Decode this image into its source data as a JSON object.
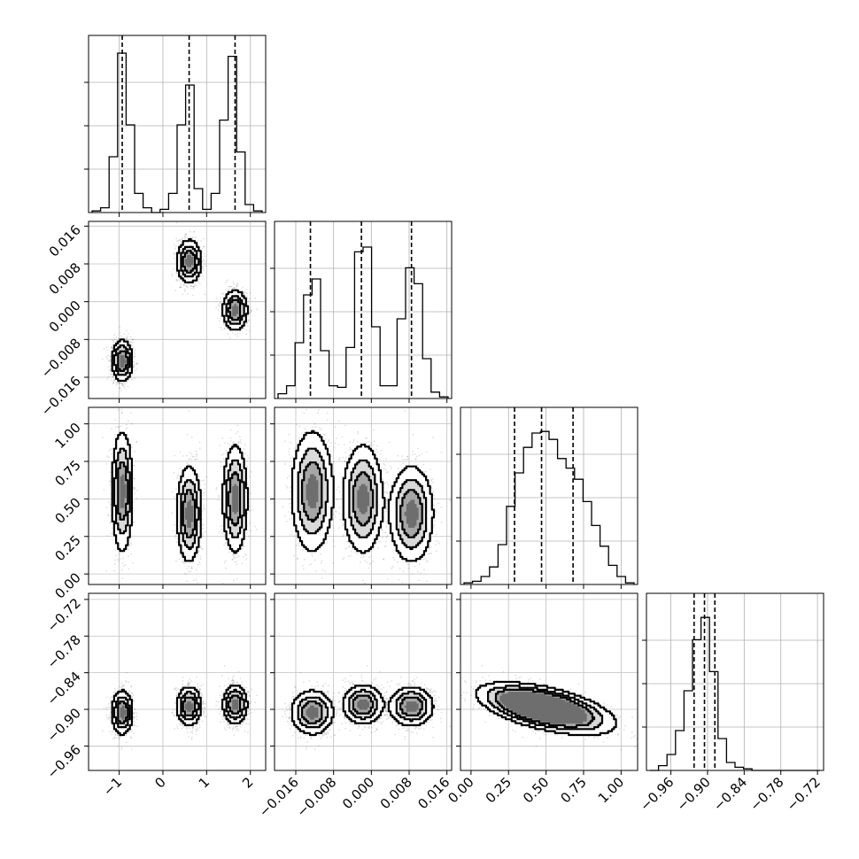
{
  "chart_data": {
    "type": "corner",
    "grid": true,
    "parameters": [
      {
        "ticks": [
          -1,
          0,
          1,
          2
        ],
        "tick_labels": [
          "−1",
          "0",
          "1",
          "2"
        ],
        "lim": [
          -1.7,
          2.35
        ],
        "quantile_lines": [
          -0.93,
          0.6,
          1.65
        ]
      },
      {
        "ticks": [
          -0.016,
          -0.008,
          0.0,
          0.008,
          0.016
        ],
        "tick_labels": [
          "−0.016",
          "−0.008",
          "0.000",
          "0.008",
          "0.016"
        ],
        "lim": [
          -0.0205,
          0.017
        ],
        "quantile_lines": [
          -0.0129,
          -0.0021,
          0.0085
        ]
      },
      {
        "ticks": [
          0.0,
          0.25,
          0.5,
          0.75,
          1.0
        ],
        "tick_labels": [
          "0.00",
          "0.25",
          "0.50",
          "0.75",
          "1.00"
        ],
        "lim": [
          -0.07,
          1.11
        ],
        "quantile_lines": [
          0.29,
          0.47,
          0.68
        ]
      },
      {
        "ticks": [
          -0.96,
          -0.9,
          -0.84,
          -0.78,
          -0.72
        ],
        "tick_labels": [
          "−0.96",
          "−0.90",
          "−0.84",
          "−0.78",
          "−0.72"
        ],
        "lim": [
          -1.0,
          -0.71
        ],
        "quantile_lines": [
          -0.922,
          -0.905,
          -0.888
        ]
      }
    ],
    "histograms": [
      {
        "param": 0,
        "counts": [
          0.01,
          0.03,
          0.35,
          1.0,
          0.55,
          0.12,
          0.03,
          0.0,
          0.02,
          0.12,
          0.55,
          0.8,
          0.15,
          0.02,
          0.12,
          0.58,
          0.98,
          0.38,
          0.05,
          0.01
        ]
      },
      {
        "param": 1,
        "counts": [
          0.03,
          0.08,
          0.35,
          0.65,
          0.75,
          0.3,
          0.08,
          0.07,
          0.32,
          0.92,
          0.95,
          0.45,
          0.08,
          0.08,
          0.5,
          0.82,
          0.72,
          0.25,
          0.04,
          0.01
        ]
      },
      {
        "param": 2,
        "counts": [
          0.01,
          0.02,
          0.05,
          0.11,
          0.25,
          0.49,
          0.7,
          0.86,
          0.95,
          0.96,
          0.91,
          0.79,
          0.73,
          0.66,
          0.52,
          0.37,
          0.24,
          0.12,
          0.05,
          0.01
        ]
      },
      {
        "param": 3,
        "counts": [
          0.0,
          0.03,
          0.1,
          0.25,
          0.5,
          0.82,
          0.96,
          0.62,
          0.2,
          0.05,
          0.02,
          0.01,
          0.0,
          0.0,
          0.0,
          0.0,
          0.0,
          0.0,
          0.0,
          0.0
        ]
      }
    ],
    "clusters": [
      {
        "p0": -0.93,
        "s0": 0.12,
        "p1": -0.0125,
        "s1": 0.0022,
        "p2": 0.55,
        "s2": 0.2,
        "p3": -0.905,
        "s3": 0.018
      },
      {
        "p0": 0.6,
        "s0": 0.14,
        "p1": 0.0085,
        "s1": 0.0023,
        "p2": 0.4,
        "s2": 0.16,
        "p3": -0.895,
        "s3": 0.016
      },
      {
        "p0": 1.65,
        "s0": 0.14,
        "p1": -0.0018,
        "s1": 0.0021,
        "p2": 0.5,
        "s2": 0.18,
        "p3": -0.892,
        "s3": 0.016
      }
    ],
    "correlation_2_3": -0.55
  }
}
